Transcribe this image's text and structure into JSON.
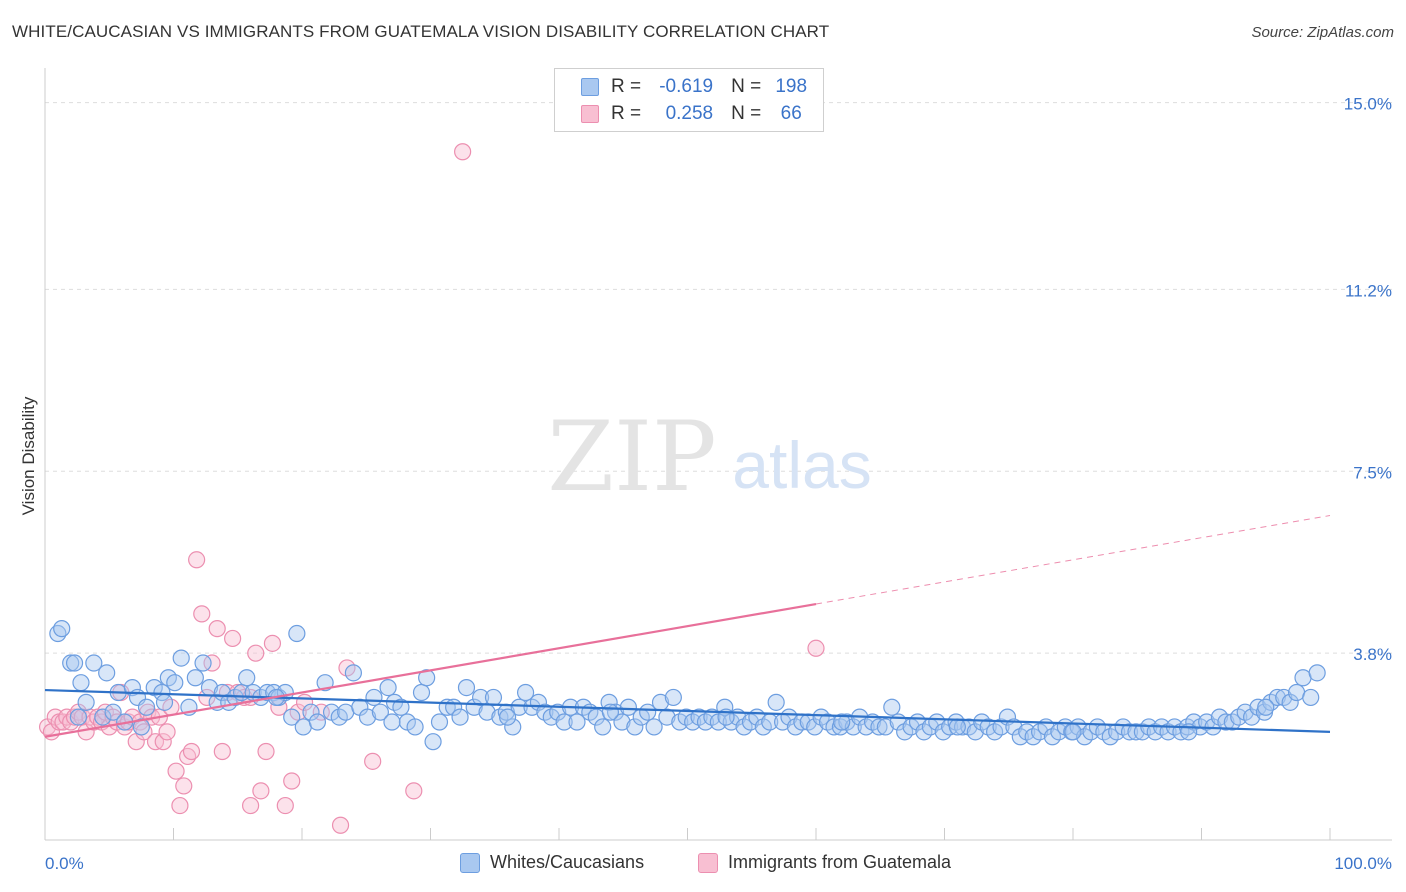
{
  "header": {
    "title": "WHITE/CAUCASIAN VS IMMIGRANTS FROM GUATEMALA VISION DISABILITY CORRELATION CHART",
    "source": "Source: ZipAtlas.com"
  },
  "watermark": {
    "zip": "ZIP",
    "atlas": "atlas"
  },
  "legend": {
    "rows": [
      {
        "r_label": "R =",
        "r_value": "-0.619",
        "n_label": "N =",
        "n_value": "198",
        "color": "#a9c8f0",
        "stroke": "#6d9ee0"
      },
      {
        "r_label": "R =",
        "r_value": "0.258",
        "n_label": "N =",
        "n_value": "66",
        "color": "#f8bfd2",
        "stroke": "#ec8fb0"
      }
    ]
  },
  "bottom_legend": {
    "items": [
      {
        "label": "Whites/Caucasians",
        "color": "#a9c8f0",
        "stroke": "#6d9ee0"
      },
      {
        "label": "Immigrants from Guatemala",
        "color": "#f8bfd2",
        "stroke": "#ec8fb0"
      }
    ]
  },
  "chart_data": {
    "type": "scatter",
    "title": "WHITE/CAUCASIAN VS IMMIGRANTS FROM GUATEMALA VISION DISABILITY CORRELATION CHART",
    "xlabel": "",
    "ylabel": "Vision Disability",
    "xlim": [
      0,
      100
    ],
    "ylim": [
      0,
      15.5
    ],
    "x_tick_labels": [
      "0.0%",
      "100.0%"
    ],
    "y_ticks": [
      3.8,
      7.5,
      11.2,
      15.0
    ],
    "y_tick_labels": [
      "3.8%",
      "7.5%",
      "11.2%",
      "15.0%"
    ],
    "grid": "horizontal dashed",
    "legend_position": "top-center",
    "colors": {
      "blue_fill": "#a9c8f0",
      "blue_stroke": "#6d9ee0",
      "blue_line": "#2f72c8",
      "pink_fill": "#f8bfd2",
      "pink_stroke": "#ec8fb0",
      "pink_line": "#e8709a",
      "tick_label": "#3a73c9"
    },
    "series": [
      {
        "name": "Whites/Caucasians",
        "r": -0.619,
        "n": 198,
        "trend": {
          "x": [
            0,
            100
          ],
          "y": [
            3.05,
            2.2
          ]
        },
        "points": [
          [
            1.0,
            4.2
          ],
          [
            1.3,
            4.3
          ],
          [
            2.0,
            3.6
          ],
          [
            2.3,
            3.6
          ],
          [
            2.8,
            3.2
          ],
          [
            3.2,
            2.8
          ],
          [
            3.8,
            3.6
          ],
          [
            4.5,
            2.5
          ],
          [
            4.8,
            3.4
          ],
          [
            5.3,
            2.6
          ],
          [
            5.7,
            3.0
          ],
          [
            6.2,
            2.4
          ],
          [
            6.8,
            3.1
          ],
          [
            7.2,
            2.9
          ],
          [
            7.9,
            2.7
          ],
          [
            8.5,
            3.1
          ],
          [
            9.1,
            3.0
          ],
          [
            9.6,
            3.3
          ],
          [
            10.1,
            3.2
          ],
          [
            10.6,
            3.7
          ],
          [
            11.2,
            2.7
          ],
          [
            11.7,
            3.3
          ],
          [
            12.3,
            3.6
          ],
          [
            12.8,
            3.1
          ],
          [
            13.4,
            2.8
          ],
          [
            13.8,
            3.0
          ],
          [
            14.3,
            2.8
          ],
          [
            14.8,
            2.9
          ],
          [
            15.3,
            3.0
          ],
          [
            15.7,
            3.3
          ],
          [
            16.2,
            3.0
          ],
          [
            16.8,
            2.9
          ],
          [
            17.3,
            3.0
          ],
          [
            17.8,
            3.0
          ],
          [
            18.2,
            2.9
          ],
          [
            18.7,
            3.0
          ],
          [
            19.2,
            2.5
          ],
          [
            19.6,
            4.2
          ],
          [
            20.1,
            2.3
          ],
          [
            20.7,
            2.6
          ],
          [
            21.2,
            2.4
          ],
          [
            21.8,
            3.2
          ],
          [
            22.3,
            2.6
          ],
          [
            22.9,
            2.5
          ],
          [
            23.4,
            2.6
          ],
          [
            24.0,
            3.4
          ],
          [
            24.5,
            2.7
          ],
          [
            25.1,
            2.5
          ],
          [
            25.6,
            2.9
          ],
          [
            26.1,
            2.6
          ],
          [
            26.7,
            3.1
          ],
          [
            27.2,
            2.8
          ],
          [
            27.7,
            2.7
          ],
          [
            28.2,
            2.4
          ],
          [
            28.8,
            2.3
          ],
          [
            29.3,
            3.0
          ],
          [
            29.7,
            3.3
          ],
          [
            30.2,
            2.0
          ],
          [
            30.7,
            2.4
          ],
          [
            31.3,
            2.7
          ],
          [
            31.8,
            2.7
          ],
          [
            32.3,
            2.5
          ],
          [
            32.8,
            3.1
          ],
          [
            33.4,
            2.7
          ],
          [
            33.9,
            2.9
          ],
          [
            34.4,
            2.6
          ],
          [
            34.9,
            2.9
          ],
          [
            35.4,
            2.5
          ],
          [
            35.9,
            2.6
          ],
          [
            36.4,
            2.3
          ],
          [
            36.9,
            2.7
          ],
          [
            37.4,
            3.0
          ],
          [
            37.9,
            2.7
          ],
          [
            38.4,
            2.8
          ],
          [
            38.9,
            2.6
          ],
          [
            39.4,
            2.5
          ],
          [
            39.9,
            2.6
          ],
          [
            40.4,
            2.4
          ],
          [
            40.9,
            2.7
          ],
          [
            41.4,
            2.4
          ],
          [
            41.9,
            2.7
          ],
          [
            42.4,
            2.6
          ],
          [
            42.9,
            2.5
          ],
          [
            43.4,
            2.3
          ],
          [
            43.9,
            2.8
          ],
          [
            44.4,
            2.6
          ],
          [
            44.9,
            2.4
          ],
          [
            45.4,
            2.7
          ],
          [
            45.9,
            2.3
          ],
          [
            46.4,
            2.5
          ],
          [
            46.9,
            2.6
          ],
          [
            47.4,
            2.3
          ],
          [
            47.9,
            2.8
          ],
          [
            48.4,
            2.5
          ],
          [
            48.9,
            2.9
          ],
          [
            49.4,
            2.4
          ],
          [
            49.9,
            2.5
          ],
          [
            50.4,
            2.4
          ],
          [
            50.9,
            2.5
          ],
          [
            51.4,
            2.4
          ],
          [
            51.9,
            2.5
          ],
          [
            52.4,
            2.4
          ],
          [
            52.9,
            2.7
          ],
          [
            53.4,
            2.4
          ],
          [
            53.9,
            2.5
          ],
          [
            54.4,
            2.3
          ],
          [
            54.9,
            2.4
          ],
          [
            55.4,
            2.5
          ],
          [
            55.9,
            2.3
          ],
          [
            56.4,
            2.4
          ],
          [
            56.9,
            2.8
          ],
          [
            57.4,
            2.4
          ],
          [
            57.9,
            2.5
          ],
          [
            58.4,
            2.3
          ],
          [
            58.9,
            2.4
          ],
          [
            59.4,
            2.4
          ],
          [
            59.9,
            2.3
          ],
          [
            60.4,
            2.5
          ],
          [
            60.9,
            2.4
          ],
          [
            61.4,
            2.3
          ],
          [
            61.9,
            2.3
          ],
          [
            62.4,
            2.4
          ],
          [
            62.9,
            2.3
          ],
          [
            63.4,
            2.5
          ],
          [
            63.9,
            2.3
          ],
          [
            64.4,
            2.4
          ],
          [
            64.9,
            2.3
          ],
          [
            65.4,
            2.3
          ],
          [
            65.9,
            2.7
          ],
          [
            66.4,
            2.4
          ],
          [
            66.9,
            2.2
          ],
          [
            67.4,
            2.3
          ],
          [
            67.9,
            2.4
          ],
          [
            68.4,
            2.2
          ],
          [
            68.9,
            2.3
          ],
          [
            69.4,
            2.4
          ],
          [
            69.9,
            2.2
          ],
          [
            70.4,
            2.3
          ],
          [
            70.9,
            2.4
          ],
          [
            71.4,
            2.3
          ],
          [
            71.9,
            2.3
          ],
          [
            72.4,
            2.2
          ],
          [
            72.9,
            2.4
          ],
          [
            73.4,
            2.3
          ],
          [
            73.9,
            2.2
          ],
          [
            74.4,
            2.3
          ],
          [
            74.9,
            2.5
          ],
          [
            75.4,
            2.3
          ],
          [
            75.9,
            2.1
          ],
          [
            76.4,
            2.2
          ],
          [
            76.9,
            2.1
          ],
          [
            77.4,
            2.2
          ],
          [
            77.9,
            2.3
          ],
          [
            78.4,
            2.1
          ],
          [
            78.9,
            2.2
          ],
          [
            79.4,
            2.3
          ],
          [
            79.9,
            2.2
          ],
          [
            80.4,
            2.3
          ],
          [
            80.9,
            2.1
          ],
          [
            81.4,
            2.2
          ],
          [
            81.9,
            2.3
          ],
          [
            82.4,
            2.2
          ],
          [
            82.9,
            2.1
          ],
          [
            83.4,
            2.2
          ],
          [
            83.9,
            2.3
          ],
          [
            84.4,
            2.2
          ],
          [
            84.9,
            2.2
          ],
          [
            85.4,
            2.2
          ],
          [
            85.9,
            2.3
          ],
          [
            86.4,
            2.2
          ],
          [
            86.9,
            2.3
          ],
          [
            87.4,
            2.2
          ],
          [
            87.9,
            2.3
          ],
          [
            88.4,
            2.2
          ],
          [
            88.9,
            2.3
          ],
          [
            89.4,
            2.4
          ],
          [
            89.9,
            2.3
          ],
          [
            90.4,
            2.4
          ],
          [
            90.9,
            2.3
          ],
          [
            91.4,
            2.5
          ],
          [
            91.9,
            2.4
          ],
          [
            92.4,
            2.4
          ],
          [
            92.9,
            2.5
          ],
          [
            93.4,
            2.6
          ],
          [
            93.9,
            2.5
          ],
          [
            94.4,
            2.7
          ],
          [
            94.9,
            2.6
          ],
          [
            95.4,
            2.8
          ],
          [
            95.9,
            2.9
          ],
          [
            96.4,
            2.9
          ],
          [
            96.9,
            2.8
          ],
          [
            97.4,
            3.0
          ],
          [
            97.9,
            3.3
          ],
          [
            2.6,
            2.5
          ],
          [
            7.5,
            2.3
          ],
          [
            9.3,
            2.8
          ],
          [
            18.0,
            2.9
          ],
          [
            27.0,
            2.4
          ],
          [
            36.0,
            2.5
          ],
          [
            44.0,
            2.6
          ],
          [
            53.0,
            2.5
          ],
          [
            62.0,
            2.4
          ],
          [
            71.0,
            2.3
          ],
          [
            80.0,
            2.2
          ],
          [
            89.0,
            2.2
          ],
          [
            95.0,
            2.7
          ],
          [
            98.5,
            2.9
          ],
          [
            99.0,
            3.4
          ]
        ]
      },
      {
        "name": "Immigrants from Guatemala",
        "r": 0.258,
        "n": 66,
        "trend": {
          "x": [
            0,
            60
          ],
          "y": [
            2.1,
            4.8
          ]
        },
        "trend_extension": {
          "x": [
            60,
            100
          ],
          "y": [
            4.8,
            6.6
          ]
        },
        "points": [
          [
            0.2,
            2.3
          ],
          [
            0.5,
            2.2
          ],
          [
            0.8,
            2.5
          ],
          [
            1.1,
            2.4
          ],
          [
            1.4,
            2.4
          ],
          [
            1.7,
            2.5
          ],
          [
            2.0,
            2.4
          ],
          [
            2.3,
            2.5
          ],
          [
            2.6,
            2.6
          ],
          [
            2.9,
            2.5
          ],
          [
            3.2,
            2.2
          ],
          [
            3.5,
            2.5
          ],
          [
            3.8,
            2.4
          ],
          [
            4.1,
            2.5
          ],
          [
            4.4,
            2.4
          ],
          [
            4.7,
            2.6
          ],
          [
            5.0,
            2.3
          ],
          [
            5.3,
            2.5
          ],
          [
            5.6,
            2.4
          ],
          [
            5.9,
            3.0
          ],
          [
            6.2,
            2.3
          ],
          [
            6.5,
            2.4
          ],
          [
            6.8,
            2.5
          ],
          [
            7.1,
            2.0
          ],
          [
            7.4,
            2.4
          ],
          [
            7.7,
            2.2
          ],
          [
            8.0,
            2.6
          ],
          [
            8.3,
            2.5
          ],
          [
            8.6,
            2.0
          ],
          [
            8.9,
            2.5
          ],
          [
            9.2,
            2.0
          ],
          [
            9.5,
            2.2
          ],
          [
            9.8,
            2.7
          ],
          [
            10.2,
            1.4
          ],
          [
            10.5,
            0.7
          ],
          [
            10.8,
            1.1
          ],
          [
            11.1,
            1.7
          ],
          [
            11.4,
            1.8
          ],
          [
            11.8,
            5.7
          ],
          [
            12.2,
            4.6
          ],
          [
            12.6,
            2.9
          ],
          [
            13.0,
            3.6
          ],
          [
            13.4,
            4.3
          ],
          [
            13.8,
            1.8
          ],
          [
            14.2,
            3.0
          ],
          [
            14.6,
            4.1
          ],
          [
            15.0,
            3.0
          ],
          [
            15.5,
            2.9
          ],
          [
            16.0,
            0.7
          ],
          [
            16.4,
            3.8
          ],
          [
            16.8,
            1.0
          ],
          [
            17.2,
            1.8
          ],
          [
            17.7,
            4.0
          ],
          [
            18.2,
            2.7
          ],
          [
            18.7,
            0.7
          ],
          [
            19.2,
            1.2
          ],
          [
            19.7,
            2.6
          ],
          [
            20.2,
            2.8
          ],
          [
            21.5,
            2.6
          ],
          [
            23.0,
            0.3
          ],
          [
            23.5,
            3.5
          ],
          [
            25.5,
            1.6
          ],
          [
            28.7,
            1.0
          ],
          [
            32.5,
            14.0
          ],
          [
            60.0,
            3.9
          ],
          [
            16.0,
            2.9
          ]
        ]
      }
    ]
  }
}
